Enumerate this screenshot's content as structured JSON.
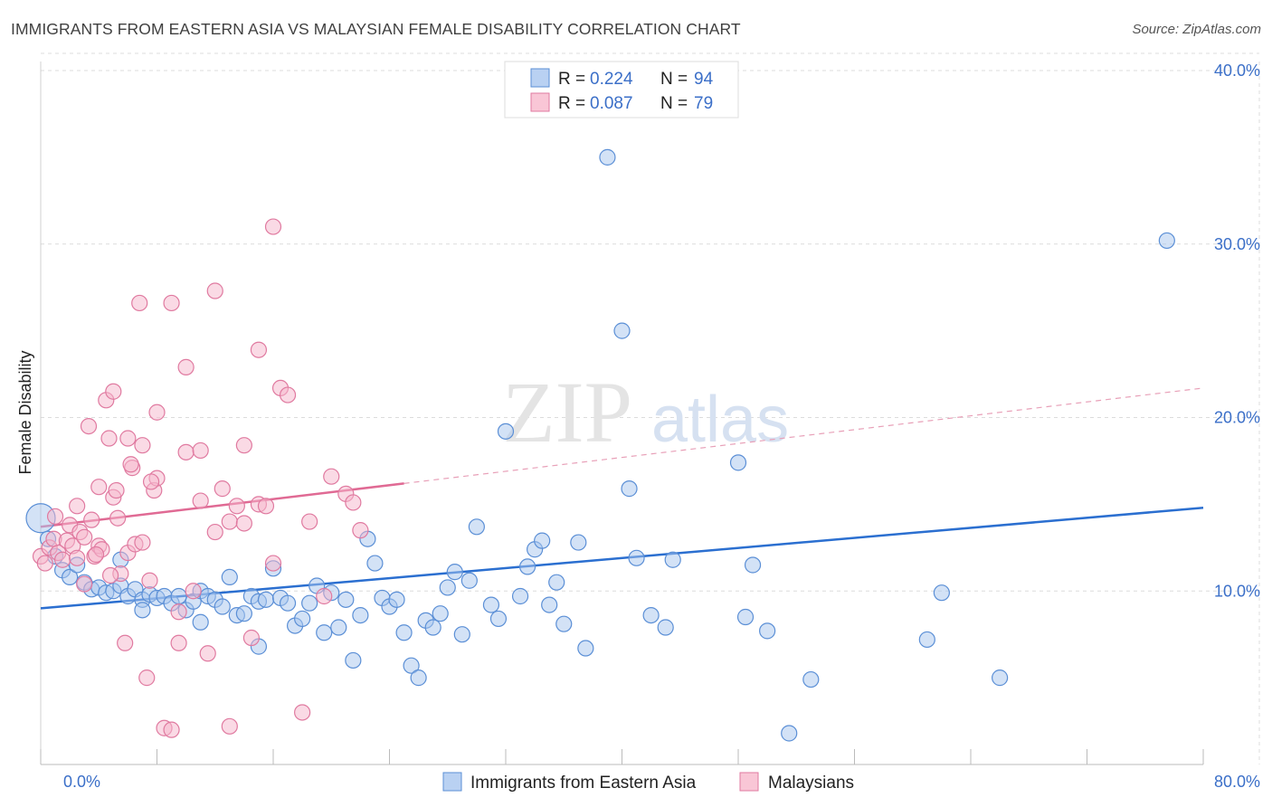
{
  "title": "IMMIGRANTS FROM EASTERN ASIA VS MALAYSIAN FEMALE DISABILITY CORRELATION CHART",
  "source": "Source: ZipAtlas.com",
  "watermark": {
    "zip": "ZIP",
    "atlas": "atlas"
  },
  "chart_data": {
    "type": "scatter",
    "ylabel": "Female Disability",
    "xlim": [
      0,
      80
    ],
    "ylim": [
      0,
      40
    ],
    "x_tick_labels": [
      "0.0%",
      "80.0%"
    ],
    "y_ticks": [
      10,
      20,
      30,
      40
    ],
    "y_tick_labels": [
      "10.0%",
      "20.0%",
      "30.0%",
      "40.0%"
    ],
    "legend_top": [
      {
        "r_label": "R =",
        "r_value": "0.224",
        "n_label": "N =",
        "n_value": "94"
      },
      {
        "r_label": "R =",
        "r_value": "0.087",
        "n_label": "N =",
        "n_value": "79"
      }
    ],
    "series": [
      {
        "name": "Immigrants from Eastern Asia",
        "color": "#5b8fd6",
        "fill": "#a8c6ee",
        "trend": {
          "x": [
            0,
            80
          ],
          "y": [
            9.0,
            14.8
          ],
          "color": "#2b6fd0"
        },
        "points": [
          [
            0,
            14.2
          ],
          [
            0.5,
            13.0
          ],
          [
            1,
            12.0
          ],
          [
            1.5,
            11.2
          ],
          [
            2,
            10.8
          ],
          [
            2.5,
            11.5
          ],
          [
            3,
            10.5
          ],
          [
            3.5,
            10.1
          ],
          [
            4,
            10.2
          ],
          [
            4.5,
            9.9
          ],
          [
            5,
            10.0
          ],
          [
            5.5,
            10.3
          ],
          [
            5.5,
            11.8
          ],
          [
            6,
            9.7
          ],
          [
            6.5,
            10.1
          ],
          [
            7,
            9.5
          ],
          [
            7,
            8.9
          ],
          [
            7.5,
            9.8
          ],
          [
            8,
            9.6
          ],
          [
            8.5,
            9.7
          ],
          [
            9,
            9.3
          ],
          [
            9.5,
            9.7
          ],
          [
            10,
            8.9
          ],
          [
            10.5,
            9.4
          ],
          [
            11,
            10.0
          ],
          [
            11,
            8.2
          ],
          [
            11.5,
            9.7
          ],
          [
            12,
            9.5
          ],
          [
            12.5,
            9.1
          ],
          [
            13,
            10.8
          ],
          [
            13.5,
            8.6
          ],
          [
            14,
            8.7
          ],
          [
            14.5,
            9.7
          ],
          [
            15,
            9.4
          ],
          [
            15,
            6.8
          ],
          [
            15.5,
            9.5
          ],
          [
            16,
            11.3
          ],
          [
            16.5,
            9.6
          ],
          [
            17,
            9.3
          ],
          [
            17.5,
            8.0
          ],
          [
            18,
            8.4
          ],
          [
            18.5,
            9.3
          ],
          [
            19,
            10.3
          ],
          [
            19.5,
            7.6
          ],
          [
            20,
            9.9
          ],
          [
            20.5,
            7.9
          ],
          [
            21,
            9.5
          ],
          [
            21.5,
            6.0
          ],
          [
            22,
            8.6
          ],
          [
            22.5,
            13.0
          ],
          [
            23,
            11.6
          ],
          [
            23.5,
            9.6
          ],
          [
            24,
            9.1
          ],
          [
            24.5,
            9.5
          ],
          [
            25,
            7.6
          ],
          [
            25.5,
            5.7
          ],
          [
            26,
            5.0
          ],
          [
            26.5,
            8.3
          ],
          [
            27,
            7.9
          ],
          [
            27.5,
            8.7
          ],
          [
            28,
            10.2
          ],
          [
            28.5,
            11.1
          ],
          [
            29,
            7.5
          ],
          [
            29.5,
            10.6
          ],
          [
            30,
            13.7
          ],
          [
            31,
            9.2
          ],
          [
            31.5,
            8.4
          ],
          [
            32,
            19.2
          ],
          [
            33,
            9.7
          ],
          [
            33.5,
            11.4
          ],
          [
            34,
            12.4
          ],
          [
            34.5,
            12.9
          ],
          [
            35,
            9.2
          ],
          [
            35.5,
            10.5
          ],
          [
            36,
            8.1
          ],
          [
            37,
            12.8
          ],
          [
            37.5,
            6.7
          ],
          [
            39,
            35.0
          ],
          [
            40,
            25.0
          ],
          [
            40.5,
            15.9
          ],
          [
            41,
            11.9
          ],
          [
            42,
            8.6
          ],
          [
            43,
            7.9
          ],
          [
            43.5,
            11.8
          ],
          [
            48,
            17.4
          ],
          [
            48.5,
            8.5
          ],
          [
            49,
            11.5
          ],
          [
            50,
            7.7
          ],
          [
            51.5,
            1.8
          ],
          [
            53,
            4.9
          ],
          [
            61,
            7.2
          ],
          [
            62,
            9.9
          ],
          [
            66,
            5.0
          ],
          [
            77.5,
            30.2
          ]
        ]
      },
      {
        "name": "Malaysians",
        "color": "#e07aa0",
        "fill": "#f5b6cb",
        "trend": {
          "x": [
            0,
            25
          ],
          "y": [
            13.7,
            16.2
          ],
          "color": "#e06a94"
        },
        "trend_dashed": {
          "x": [
            25,
            80
          ],
          "y": [
            16.2,
            21.7
          ],
          "color": "#e8a0b8"
        },
        "points": [
          [
            0,
            12.0
          ],
          [
            0.3,
            11.6
          ],
          [
            0.6,
            12.5
          ],
          [
            0.9,
            13.0
          ],
          [
            1.2,
            12.2
          ],
          [
            1.5,
            11.8
          ],
          [
            1.8,
            12.9
          ],
          [
            2,
            13.8
          ],
          [
            2.2,
            12.6
          ],
          [
            2.5,
            11.9
          ],
          [
            2.7,
            13.4
          ],
          [
            3,
            13.1
          ],
          [
            3,
            10.4
          ],
          [
            3.3,
            19.5
          ],
          [
            3.5,
            14.1
          ],
          [
            3.7,
            12.0
          ],
          [
            4,
            16.0
          ],
          [
            4,
            12.6
          ],
          [
            4.2,
            12.4
          ],
          [
            4.5,
            21.0
          ],
          [
            4.7,
            18.8
          ],
          [
            5,
            21.5
          ],
          [
            5,
            15.4
          ],
          [
            5.3,
            14.2
          ],
          [
            5.5,
            11.0
          ],
          [
            5.8,
            7.0
          ],
          [
            6,
            12.2
          ],
          [
            6,
            18.8
          ],
          [
            6.3,
            17.1
          ],
          [
            6.5,
            12.7
          ],
          [
            6.8,
            26.6
          ],
          [
            7,
            18.4
          ],
          [
            7,
            12.8
          ],
          [
            7.3,
            5.0
          ],
          [
            7.5,
            10.6
          ],
          [
            7.8,
            15.8
          ],
          [
            8,
            20.3
          ],
          [
            8,
            16.5
          ],
          [
            8.5,
            2.1
          ],
          [
            9,
            2.0
          ],
          [
            9,
            26.6
          ],
          [
            9.5,
            8.8
          ],
          [
            9.5,
            7.0
          ],
          [
            10,
            22.9
          ],
          [
            10,
            18.0
          ],
          [
            10.5,
            10.0
          ],
          [
            11,
            15.2
          ],
          [
            11,
            18.1
          ],
          [
            11.5,
            6.4
          ],
          [
            12,
            27.3
          ],
          [
            12,
            13.4
          ],
          [
            12.5,
            15.9
          ],
          [
            13,
            2.2
          ],
          [
            13,
            14.0
          ],
          [
            13.5,
            14.9
          ],
          [
            14,
            18.4
          ],
          [
            14,
            13.9
          ],
          [
            14.5,
            7.3
          ],
          [
            15,
            23.9
          ],
          [
            15,
            15.0
          ],
          [
            15.5,
            14.9
          ],
          [
            16,
            31.0
          ],
          [
            16,
            11.6
          ],
          [
            16.5,
            21.7
          ],
          [
            17,
            21.3
          ],
          [
            18,
            3.0
          ],
          [
            18.5,
            14.0
          ],
          [
            19.5,
            9.7
          ],
          [
            20,
            16.6
          ],
          [
            21,
            15.6
          ],
          [
            21.5,
            15.1
          ],
          [
            22,
            13.5
          ],
          [
            2.5,
            14.9
          ],
          [
            1,
            14.3
          ],
          [
            3.8,
            12.1
          ],
          [
            4.8,
            10.9
          ],
          [
            5.2,
            15.8
          ],
          [
            6.2,
            17.3
          ],
          [
            7.6,
            16.3
          ]
        ]
      }
    ]
  }
}
